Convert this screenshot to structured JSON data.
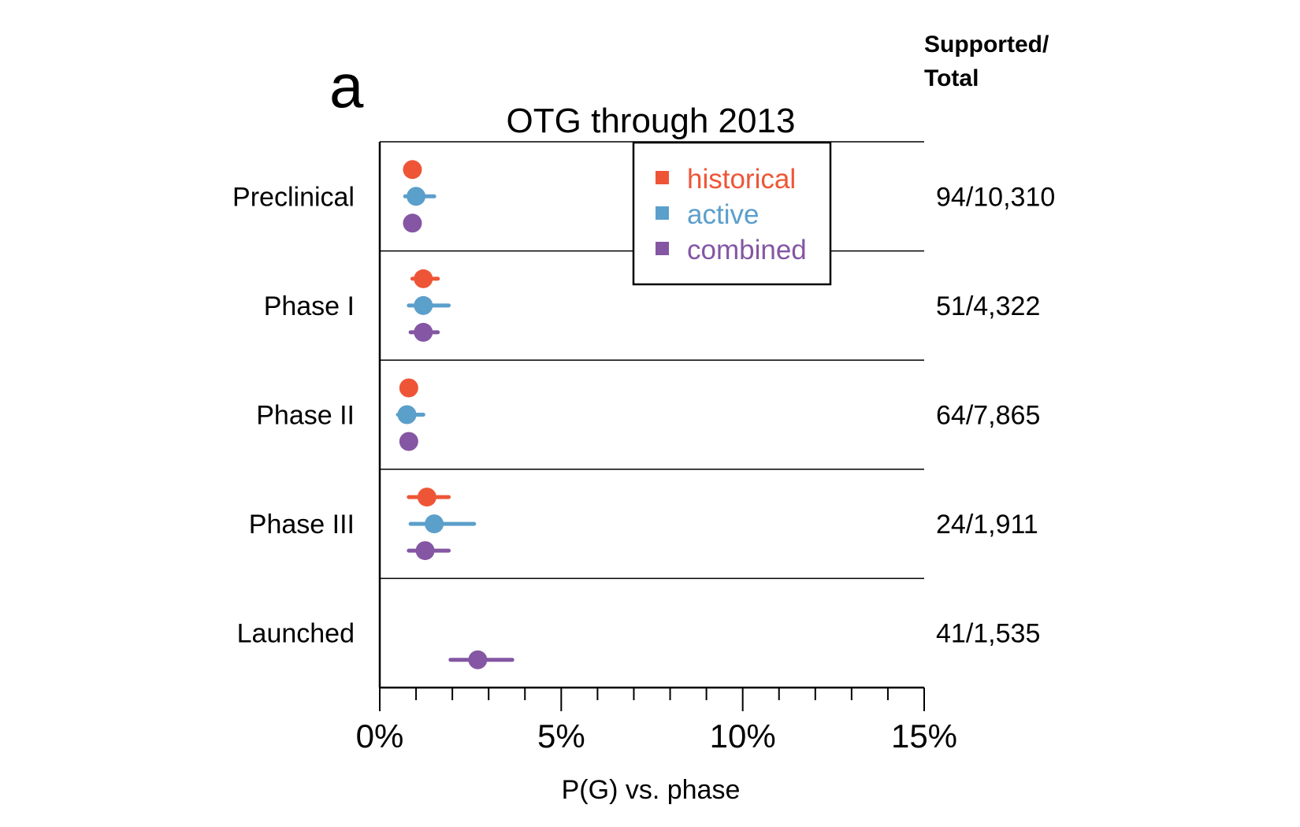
{
  "panel_letter": "a",
  "count_header": {
    "line1": "Supported/",
    "line2": "Total"
  },
  "colors": {
    "historical": "#ee5537",
    "active": "#5b9fcb",
    "combined": "#8456a3"
  },
  "chart_data": {
    "type": "scatter",
    "title": "OTG through 2013",
    "xlabel": "P(G) vs. phase",
    "ylabel": "",
    "xlim": [
      0,
      15
    ],
    "x_unit": "%",
    "x_ticks": [
      "0%",
      "5%",
      "10%",
      "15%"
    ],
    "x_minor_tick_step": 1,
    "grid": false,
    "legend_position": "top-right",
    "categories": [
      "Preclinical",
      "Phase I",
      "Phase II",
      "Phase III",
      "Launched"
    ],
    "counts": [
      "94/10,310",
      "51/4,322",
      "64/7,865",
      "24/1,911",
      "41/1,535"
    ],
    "series": [
      {
        "name": "historical",
        "color": "#ee5537",
        "points": [
          {
            "category": "Preclinical",
            "value": 0.9,
            "ci": [
              0.8,
              1.0
            ]
          },
          {
            "category": "Phase I",
            "value": 1.2,
            "ci": [
              0.9,
              1.6
            ]
          },
          {
            "category": "Phase II",
            "value": 0.8,
            "ci": [
              0.7,
              0.9
            ]
          },
          {
            "category": "Phase III",
            "value": 1.3,
            "ci": [
              0.8,
              1.9
            ]
          },
          null
        ]
      },
      {
        "name": "active",
        "color": "#5b9fcb",
        "points": [
          {
            "category": "Preclinical",
            "value": 1.0,
            "ci": [
              0.7,
              1.5
            ]
          },
          {
            "category": "Phase I",
            "value": 1.2,
            "ci": [
              0.8,
              1.9
            ]
          },
          {
            "category": "Phase II",
            "value": 0.75,
            "ci": [
              0.5,
              1.2
            ]
          },
          {
            "category": "Phase III",
            "value": 1.5,
            "ci": [
              0.85,
              2.6
            ]
          },
          null
        ]
      },
      {
        "name": "combined",
        "color": "#8456a3",
        "points": [
          {
            "category": "Preclinical",
            "value": 0.9,
            "ci": [
              0.8,
              1.0
            ]
          },
          {
            "category": "Phase I",
            "value": 1.2,
            "ci": [
              0.85,
              1.6
            ]
          },
          {
            "category": "Phase II",
            "value": 0.8,
            "ci": [
              0.7,
              0.9
            ]
          },
          {
            "category": "Phase III",
            "value": 1.25,
            "ci": [
              0.8,
              1.9
            ]
          },
          {
            "category": "Launched",
            "value": 2.7,
            "ci": [
              1.95,
              3.65
            ]
          }
        ]
      }
    ]
  }
}
